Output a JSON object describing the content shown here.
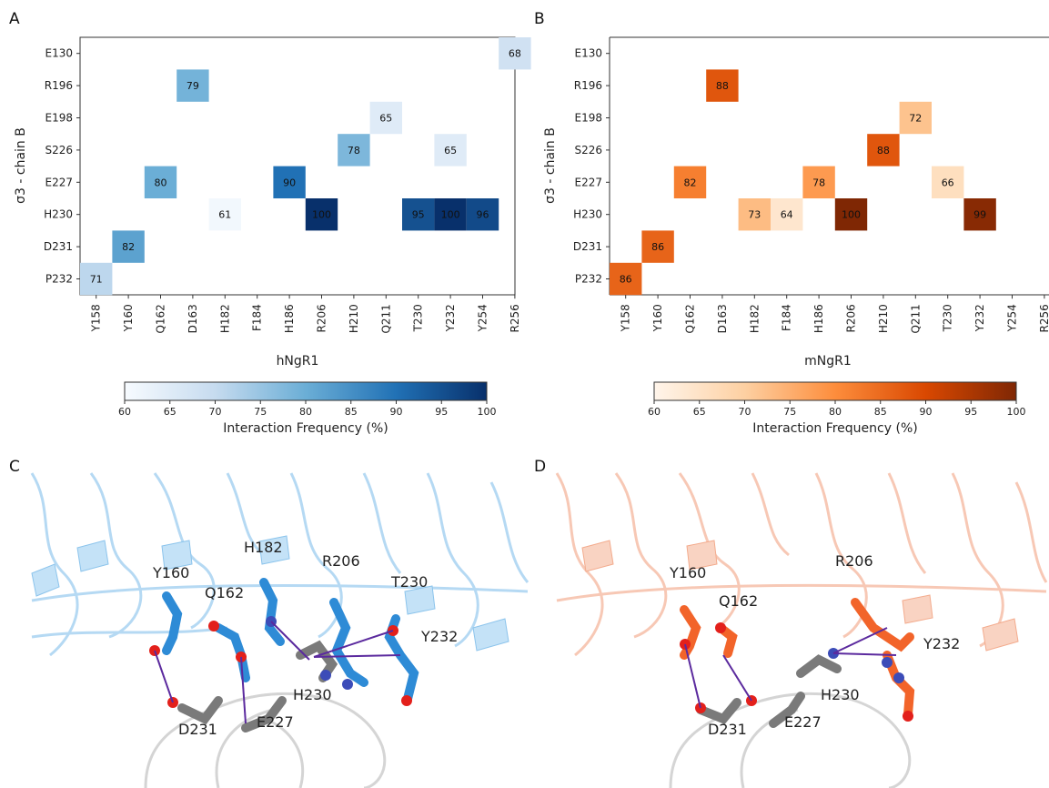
{
  "panels": {
    "a": "A",
    "b": "B",
    "c": "C",
    "d": "D"
  },
  "chart_data": [
    {
      "type": "heatmap",
      "panel": "A",
      "xlabel": "hNgR1",
      "ylabel": "σ3 - chain B",
      "x_categories": [
        "Y158",
        "Y160",
        "Q162",
        "D163",
        "H182",
        "F184",
        "H186",
        "R206",
        "H210",
        "Q211",
        "T230",
        "Y232",
        "Y254",
        "R256"
      ],
      "y_categories": [
        "E130",
        "R196",
        "E198",
        "S226",
        "E227",
        "H230",
        "D231",
        "P232"
      ],
      "colorbar": {
        "label": "Interaction Frequency (%)",
        "range": [
          60,
          100
        ],
        "ticks": [
          "60",
          "65",
          "70",
          "75",
          "80",
          "85",
          "90",
          "95",
          "100"
        ],
        "colormap": "Blues"
      },
      "cells": [
        {
          "x": "R256",
          "y": "E130",
          "value": 68
        },
        {
          "x": "D163",
          "y": "R196",
          "value": 79
        },
        {
          "x": "Q211",
          "y": "E198",
          "value": 65
        },
        {
          "x": "H210",
          "y": "S226",
          "value": 78
        },
        {
          "x": "Y232",
          "y": "S226",
          "value": 65
        },
        {
          "x": "Q162",
          "y": "E227",
          "value": 80
        },
        {
          "x": "H186",
          "y": "E227",
          "value": 90
        },
        {
          "x": "H182",
          "y": "H230",
          "value": 61
        },
        {
          "x": "R206",
          "y": "H230",
          "value": 100
        },
        {
          "x": "T230",
          "y": "H230",
          "value": 95
        },
        {
          "x": "Y232",
          "y": "H230",
          "value": 100
        },
        {
          "x": "Y254",
          "y": "H230",
          "value": 96
        },
        {
          "x": "Y160",
          "y": "D231",
          "value": 82
        },
        {
          "x": "Y158",
          "y": "P232",
          "value": 71
        }
      ]
    },
    {
      "type": "heatmap",
      "panel": "B",
      "xlabel": "mNgR1",
      "ylabel": "σ3 - chain B",
      "x_categories": [
        "Y158",
        "Y160",
        "Q162",
        "D163",
        "H182",
        "F184",
        "H186",
        "R206",
        "H210",
        "Q211",
        "T230",
        "Y232",
        "Y254",
        "R256"
      ],
      "y_categories": [
        "E130",
        "R196",
        "E198",
        "S226",
        "E227",
        "H230",
        "D231",
        "P232"
      ],
      "colorbar": {
        "label": "Interaction Frequency (%)",
        "range": [
          60,
          100
        ],
        "ticks": [
          "60",
          "65",
          "70",
          "75",
          "80",
          "85",
          "90",
          "95",
          "100"
        ],
        "colormap": "Oranges"
      },
      "cells": [
        {
          "x": "D163",
          "y": "R196",
          "value": 88
        },
        {
          "x": "Q211",
          "y": "E198",
          "value": 72
        },
        {
          "x": "H210",
          "y": "S226",
          "value": 88
        },
        {
          "x": "Q162",
          "y": "E227",
          "value": 82
        },
        {
          "x": "H186",
          "y": "E227",
          "value": 78
        },
        {
          "x": "T230",
          "y": "E227",
          "value": 66
        },
        {
          "x": "H182",
          "y": "H230",
          "value": 73
        },
        {
          "x": "F184",
          "y": "H230",
          "value": 64
        },
        {
          "x": "R206",
          "y": "H230",
          "value": 100
        },
        {
          "x": "Y232",
          "y": "H230",
          "value": 99
        },
        {
          "x": "Y160",
          "y": "D231",
          "value": 86
        },
        {
          "x": "Y158",
          "y": "P232",
          "value": 86
        }
      ]
    }
  ],
  "structure_labels": {
    "c": [
      "Y160",
      "H182",
      "R206",
      "Q162",
      "T230",
      "Y232",
      "H230",
      "D231",
      "E227"
    ],
    "d": [
      "Y160",
      "R206",
      "Q162",
      "Y232",
      "H230",
      "D231",
      "E227"
    ]
  },
  "colors": {
    "human": "#2e8bd6",
    "human_ribbon": "#a9d3f2",
    "mouse": "#f2642a",
    "mouse_ribbon": "#f7c3ad",
    "gray_residue": "#7a7a7a",
    "oxygen": "#e3201b",
    "nitrogen": "#3c4cb8",
    "contact_line": "#5b2a9e"
  }
}
